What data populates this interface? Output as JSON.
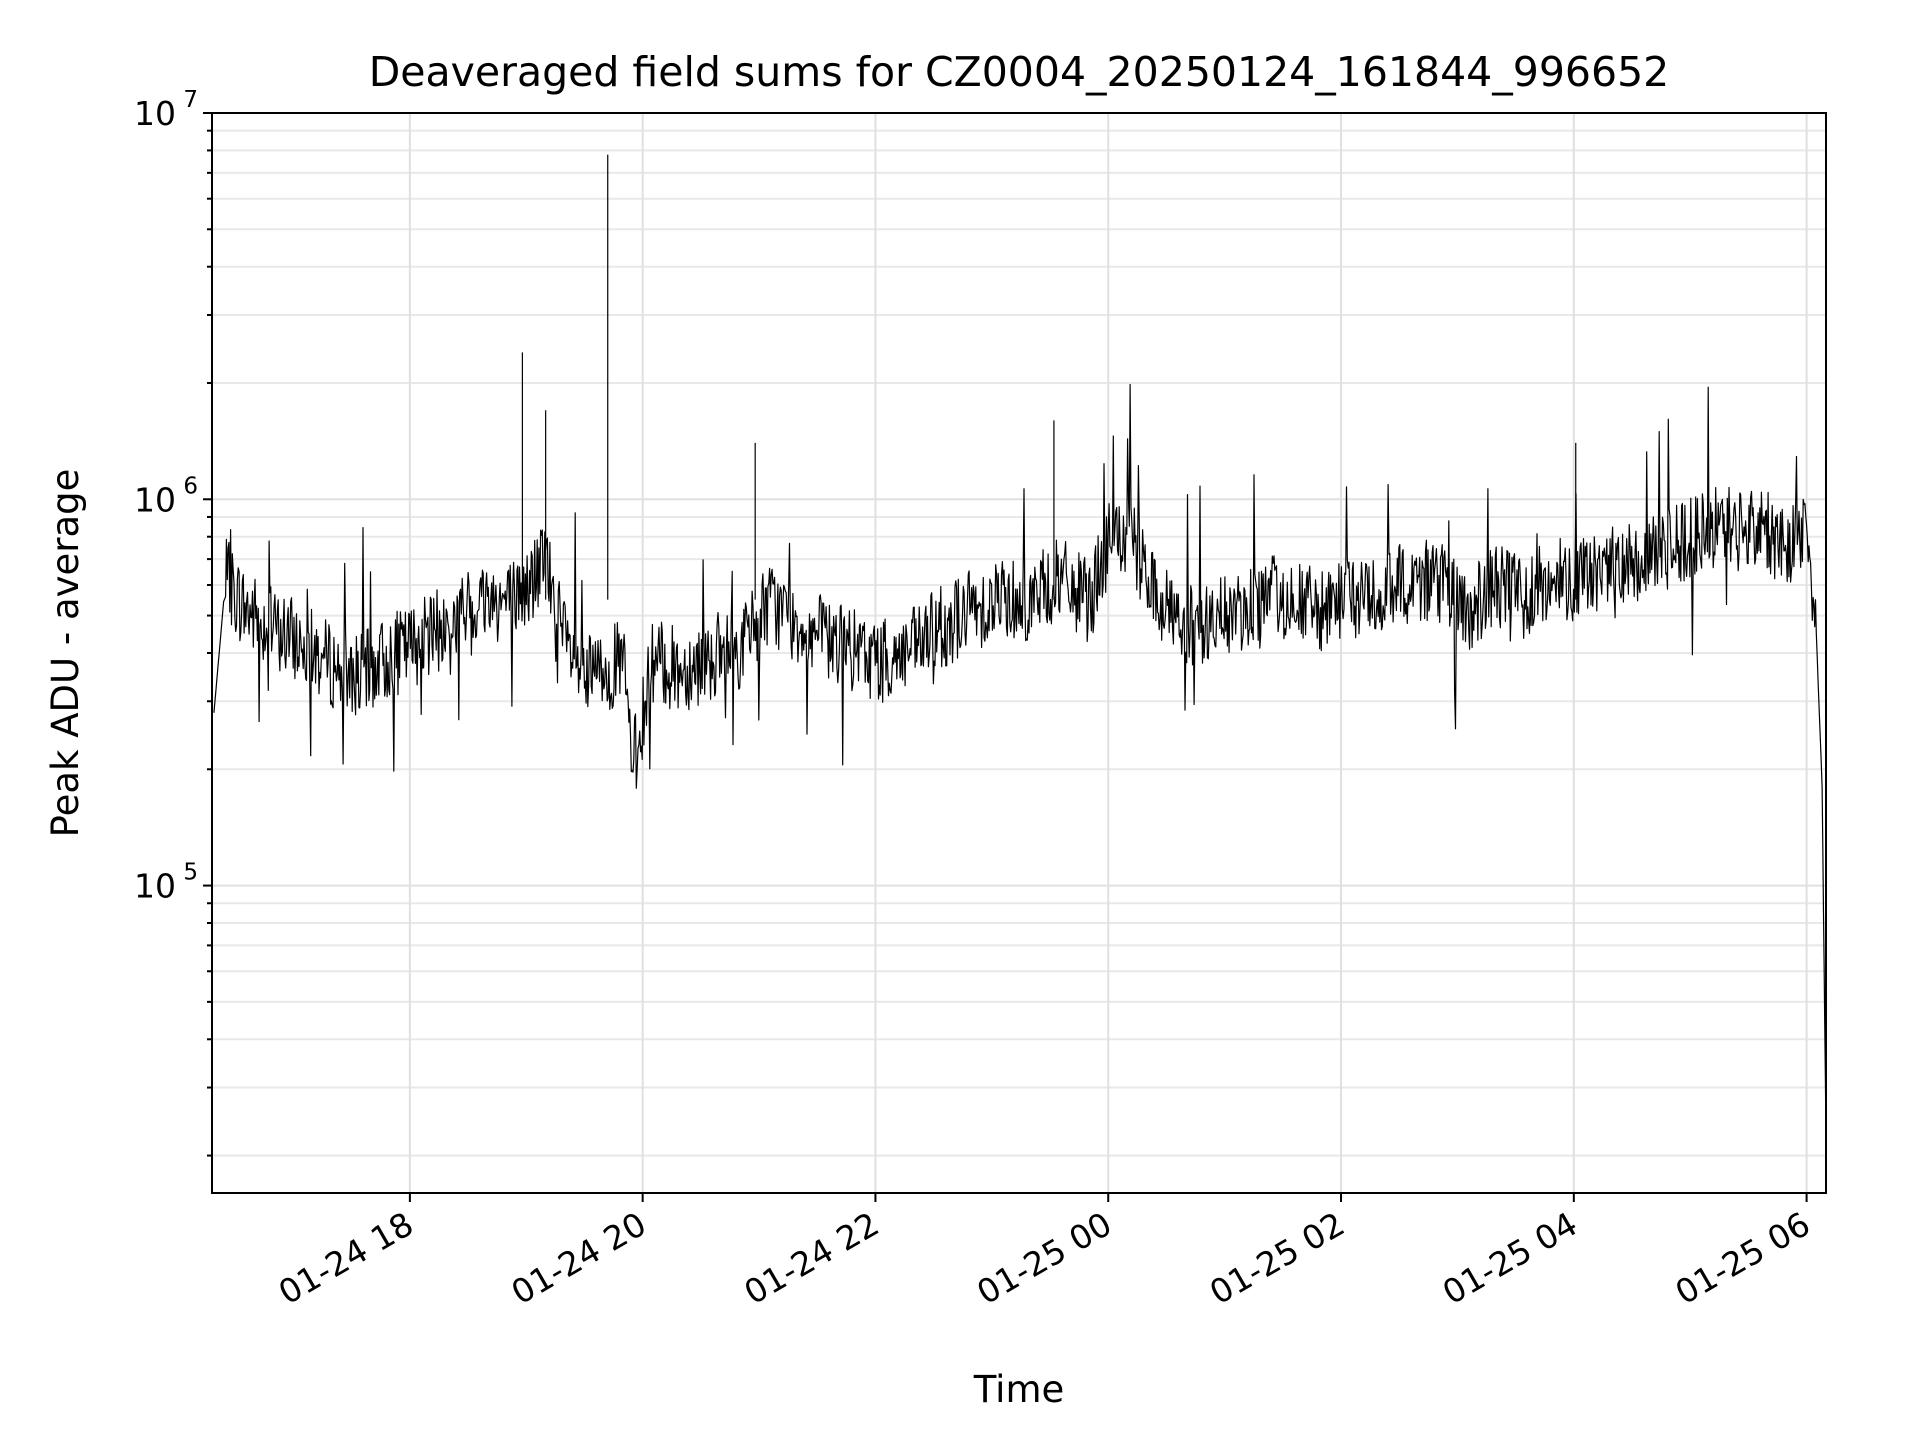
{
  "chart_data": {
    "type": "line",
    "title": "Deaveraged field sums for CZ0004_20250124_161844_996652",
    "xlabel": "Time",
    "ylabel": "Peak ADU - average",
    "y_scale": "log",
    "xlim": [
      "2025-01-24 16:18",
      "2025-01-25 06:10"
    ],
    "ylim": [
      16000,
      10000000
    ],
    "grid": true,
    "x_ticks": [
      {
        "value": "2025-01-24 18:00",
        "label": "01-24 18"
      },
      {
        "value": "2025-01-24 20:00",
        "label": "01-24 20"
      },
      {
        "value": "2025-01-24 22:00",
        "label": "01-24 22"
      },
      {
        "value": "2025-01-25 00:00",
        "label": "01-25 00"
      },
      {
        "value": "2025-01-25 02:00",
        "label": "01-25 02"
      },
      {
        "value": "2025-01-25 04:00",
        "label": "01-25 04"
      },
      {
        "value": "2025-01-25 06:00",
        "label": "01-25 06"
      }
    ],
    "y_ticks": [
      {
        "value": 100000,
        "base": "10",
        "exp": "5"
      },
      {
        "value": 1000000,
        "base": "10",
        "exp": "6"
      },
      {
        "value": 10000000,
        "base": "10",
        "exp": "7"
      }
    ],
    "series": [
      {
        "color": "#000000",
        "x": [
          "2025-01-24 16:19",
          "2025-01-24 16:25",
          "2025-01-24 16:35",
          "2025-01-24 16:50",
          "2025-01-24 17:05",
          "2025-01-24 17:20",
          "2025-01-24 17:35",
          "2025-01-24 17:50",
          "2025-01-24 18:05",
          "2025-01-24 18:20",
          "2025-01-24 18:30",
          "2025-01-24 18:40",
          "2025-01-24 18:50",
          "2025-01-24 19:00",
          "2025-01-24 19:10",
          "2025-01-24 19:20",
          "2025-01-24 19:30",
          "2025-01-24 19:40",
          "2025-01-24 19:50",
          "2025-01-24 19:55",
          "2025-01-24 20:05",
          "2025-01-24 20:20",
          "2025-01-24 20:35",
          "2025-01-24 20:50",
          "2025-01-24 21:05",
          "2025-01-24 21:20",
          "2025-01-24 21:35",
          "2025-01-24 21:50",
          "2025-01-24 22:05",
          "2025-01-24 22:20",
          "2025-01-24 22:35",
          "2025-01-24 22:50",
          "2025-01-24 23:05",
          "2025-01-24 23:20",
          "2025-01-24 23:35",
          "2025-01-24 23:50",
          "2025-01-25 00:00",
          "2025-01-25 00:10",
          "2025-01-25 00:25",
          "2025-01-25 00:40",
          "2025-01-25 00:55",
          "2025-01-25 01:10",
          "2025-01-25 01:25",
          "2025-01-25 01:40",
          "2025-01-25 01:55",
          "2025-01-25 02:05",
          "2025-01-25 02:20",
          "2025-01-25 02:35",
          "2025-01-25 02:50",
          "2025-01-25 03:05",
          "2025-01-25 03:20",
          "2025-01-25 03:35",
          "2025-01-25 03:50",
          "2025-01-25 04:05",
          "2025-01-25 04:20",
          "2025-01-25 04:35",
          "2025-01-25 04:50",
          "2025-01-25 05:05",
          "2025-01-25 05:20",
          "2025-01-25 05:35",
          "2025-01-25 05:50",
          "2025-01-25 06:00",
          "2025-01-25 06:05",
          "2025-01-25 06:08",
          "2025-01-25 06:10"
        ],
        "y": [
          280000,
          620000,
          520000,
          460000,
          420000,
          370000,
          350000,
          390000,
          430000,
          470000,
          520000,
          560000,
          540000,
          580000,
          700000,
          420000,
          340000,
          360000,
          380000,
          200000,
          380000,
          360000,
          390000,
          410000,
          540000,
          480000,
          430000,
          400000,
          380000,
          410000,
          470000,
          520000,
          560000,
          550000,
          620000,
          540000,
          760000,
          800000,
          560000,
          470000,
          480000,
          520000,
          560000,
          540000,
          500000,
          580000,
          560000,
          610000,
          620000,
          500000,
          600000,
          560000,
          630000,
          620000,
          680000,
          700000,
          750000,
          820000,
          860000,
          840000,
          760000,
          880000,
          450000,
          180000,
          22000
        ]
      }
    ],
    "spikes": [
      {
        "x": "2025-01-24 18:58",
        "y": 2400000
      },
      {
        "x": "2025-01-24 19:10",
        "y": 1700000
      },
      {
        "x": "2025-01-24 19:42",
        "y": 7800000
      },
      {
        "x": "2025-01-24 20:58",
        "y": 1400000
      },
      {
        "x": "2025-01-24 23:32",
        "y": 1600000
      },
      {
        "x": "2025-01-25 04:01",
        "y": 1400000
      }
    ]
  }
}
